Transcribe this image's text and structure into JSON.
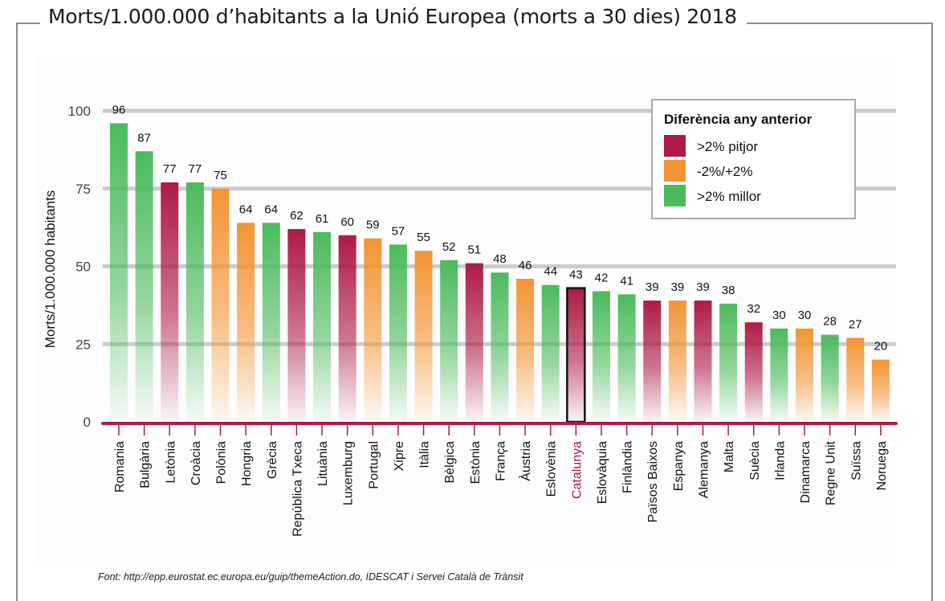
{
  "chart_data": {
    "type": "bar",
    "title": "Morts/1.000.000 d’habitants a la Unió Europea (morts a 30 dies) 2018",
    "xlabel": "",
    "ylabel": "Morts/1.000.000 habitants",
    "ylim": [
      0,
      100
    ],
    "yticks": [
      0,
      25,
      50,
      75,
      100
    ],
    "grid": true,
    "legend_position": "top-right",
    "legend": {
      "title": "Diferència any anterior",
      "entries": [
        {
          "key": "worse",
          "label": ">2% pitjor",
          "color": "#ae1a45"
        },
        {
          "key": "same",
          "label": "-2%/+2%",
          "color": "#f39433"
        },
        {
          "key": "better",
          "label": ">2% millor",
          "color": "#4cba5c"
        }
      ]
    },
    "highlight": "Catalunya",
    "highlight_color": "#ae1a45",
    "axis_color": "#ae1a45",
    "categories": [
      "Romania",
      "Bulgària",
      "Letònia",
      "Croàcia",
      "Polònia",
      "Hongria",
      "Grècia",
      "República Txeca",
      "Lituània",
      "Luxemburg",
      "Portugal",
      "Xipre",
      "Itàlia",
      "Bèlgica",
      "Estònia",
      "França",
      "Àustria",
      "Eslovènia",
      "Catalunya",
      "Eslovàquia",
      "Finlàndia",
      "Països Baixos",
      "Espanya",
      "Alemanya",
      "Malta",
      "Suècia",
      "Irlanda",
      "Dinamarca",
      "Regne Unit",
      "Suïssa",
      "Noruega"
    ],
    "values": [
      96,
      87,
      77,
      77,
      75,
      64,
      64,
      62,
      61,
      60,
      59,
      57,
      55,
      52,
      51,
      48,
      46,
      44,
      43,
      42,
      41,
      39,
      39,
      39,
      38,
      32,
      30,
      30,
      28,
      27,
      20
    ],
    "groups": [
      "better",
      "better",
      "worse",
      "better",
      "same",
      "same",
      "better",
      "worse",
      "better",
      "worse",
      "same",
      "better",
      "same",
      "better",
      "worse",
      "better",
      "same",
      "better",
      "worse",
      "better",
      "better",
      "worse",
      "same",
      "worse",
      "better",
      "worse",
      "better",
      "same",
      "better",
      "same",
      "same"
    ]
  },
  "frame_title": "Morts/1.000.000 d’habitants a la Unió Europea (morts a 30 dies) 2018",
  "source": "Font: http://epp.eurostat.ec.europa.eu/guip/themeAction.do, IDESCAT i Servei Català de Trànsit"
}
